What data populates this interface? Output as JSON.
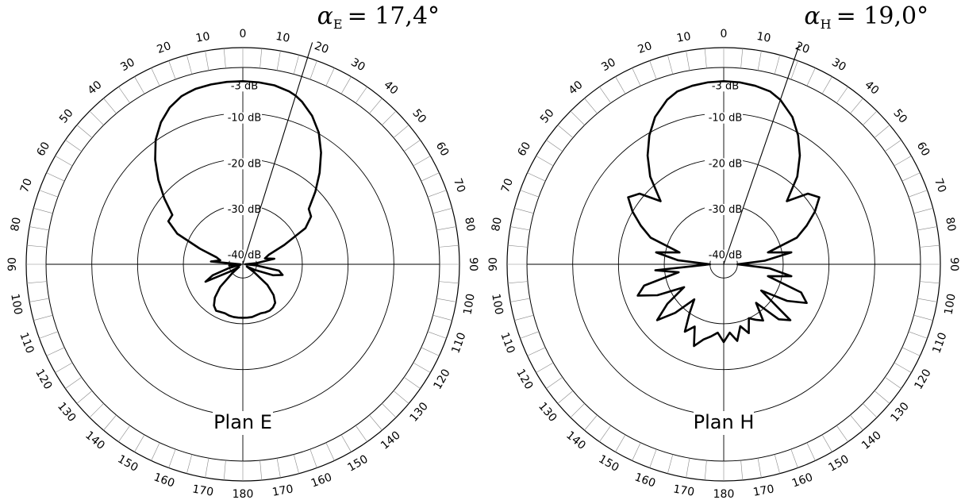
{
  "chart_data": [
    {
      "type": "polar-line",
      "title": "Plan E",
      "units": "dB",
      "r_range": [
        -43,
        0
      ],
      "ring_levels": [
        -3,
        -10,
        -20,
        -30,
        -40
      ],
      "ring_labels": [
        "-3 dB",
        "-10 dB",
        "-20 dB",
        "-30 dB",
        "-40 dB"
      ],
      "angle_labels": [
        "0",
        "10",
        "20",
        "30",
        "40",
        "50",
        "60",
        "70",
        "80",
        "90",
        "100",
        "110",
        "120",
        "130",
        "140",
        "150",
        "160",
        "170",
        "180",
        "170",
        "160",
        "150",
        "140",
        "130",
        "120",
        "110",
        "100",
        "90",
        "80",
        "70",
        "60",
        "50",
        "40",
        "30",
        "20",
        "10"
      ],
      "beam_angle_deg": 17.4,
      "beam_label": {
        "symbol": "α",
        "subscript": "E",
        "value": "= 17,4°"
      },
      "series": [
        {
          "theta": [
            0,
            5,
            10,
            15,
            17.4,
            20,
            25,
            30,
            35,
            40,
            45,
            50,
            55,
            60,
            65,
            70,
            75,
            80,
            85,
            90,
            95,
            100,
            105,
            110,
            115,
            120,
            125,
            130,
            135,
            140,
            145,
            150,
            155,
            160,
            165,
            170,
            175,
            180,
            185,
            190,
            195,
            200,
            205,
            210,
            215,
            220,
            225,
            230,
            235,
            240,
            245,
            250,
            255,
            260,
            265,
            270,
            275,
            280,
            285,
            290,
            295,
            300,
            305,
            310,
            315,
            320,
            325,
            330,
            335,
            340,
            342.6,
            345,
            350,
            355,
            360
          ],
          "r": [
            -3,
            -3.1,
            -3.3,
            -3.9,
            -4.4,
            -5.2,
            -7.2,
            -9.8,
            -13.2,
            -16.9,
            -20.6,
            -24.2,
            -24.8,
            -27.2,
            -33,
            -37,
            -38,
            -36,
            -40,
            -42.5,
            -40,
            -35,
            -34,
            -36,
            -40,
            -42,
            -40,
            -36,
            -33.5,
            -32,
            -31.5,
            -31.3,
            -31.4,
            -31.6,
            -31.5,
            -31.3,
            -31.3,
            -31.3,
            -31.3,
            -31.3,
            -31.4,
            -31.6,
            -31.5,
            -31.3,
            -32,
            -33.5,
            -36,
            -40,
            -42,
            -40,
            -34,
            -36,
            -40,
            -42.5,
            -40,
            -42.5,
            -36,
            -38,
            -37,
            -33,
            -27.2,
            -24.2,
            -24.2,
            -20.6,
            -16.9,
            -13.2,
            -9.8,
            -7.2,
            -5.2,
            -3.9,
            -3.6,
            -3.3,
            -3.1,
            -3,
            -3
          ]
        }
      ]
    },
    {
      "type": "polar-line",
      "title": "Plan H",
      "units": "dB",
      "r_range": [
        -43,
        0
      ],
      "ring_levels": [
        -3,
        -10,
        -20,
        -30,
        -40
      ],
      "ring_labels": [
        "-3 dB",
        "-10 dB",
        "-20 dB",
        "-30 dB",
        "-40 dB"
      ],
      "angle_labels": [
        "0",
        "10",
        "20",
        "30",
        "40",
        "50",
        "60",
        "70",
        "80",
        "90",
        "100",
        "110",
        "120",
        "130",
        "140",
        "150",
        "160",
        "170",
        "180",
        "170",
        "160",
        "150",
        "140",
        "130",
        "120",
        "110",
        "100",
        "90",
        "80",
        "70",
        "60",
        "50",
        "40",
        "30",
        "20",
        "10"
      ],
      "beam_angle_deg": 19.0,
      "beam_label": {
        "symbol": "α",
        "subscript": "H",
        "value": "= 19,0°"
      },
      "series": [
        {
          "theta": [
            0,
            5,
            10,
            15,
            19,
            25,
            30,
            35,
            40,
            45,
            50,
            55,
            60,
            65,
            70,
            75,
            80,
            85,
            90,
            95,
            100,
            105,
            110,
            115,
            120,
            125,
            130,
            135,
            140,
            145,
            150,
            155,
            160,
            165,
            170,
            175,
            180,
            185,
            190,
            195,
            200,
            205,
            210,
            215,
            220,
            225,
            230,
            235,
            240,
            245,
            250,
            255,
            260,
            265,
            270,
            275,
            280,
            285,
            290,
            295,
            300,
            305,
            310,
            315,
            320,
            325,
            330,
            335,
            341,
            345,
            350,
            355,
            360
          ],
          "r": [
            -3,
            -3.1,
            -3.4,
            -3.9,
            -5,
            -7.5,
            -10.5,
            -14,
            -18,
            -23.5,
            -19,
            -17.5,
            -20,
            -23,
            -26,
            -33,
            -28,
            -34,
            -40,
            -33,
            -28,
            -33,
            -25,
            -23,
            -27,
            -33,
            -24,
            -26,
            -32,
            -28,
            -29,
            -30,
            -27,
            -29,
            -26,
            -28,
            -26,
            -28,
            -27,
            -26,
            -24,
            -28,
            -26,
            -30,
            -33,
            -28,
            -24,
            -28,
            -33,
            -27,
            -23,
            -25,
            -33,
            -28,
            -40,
            -33,
            -28,
            -33,
            -26,
            -23,
            -20,
            -17.5,
            -19,
            -23.5,
            -18,
            -14,
            -10.5,
            -7.5,
            -5,
            -3.9,
            -3.4,
            -3.1,
            -3
          ]
        }
      ]
    }
  ],
  "panels": [
    {
      "plan_label": "Plan E"
    },
    {
      "plan_label": "Plan H"
    }
  ]
}
